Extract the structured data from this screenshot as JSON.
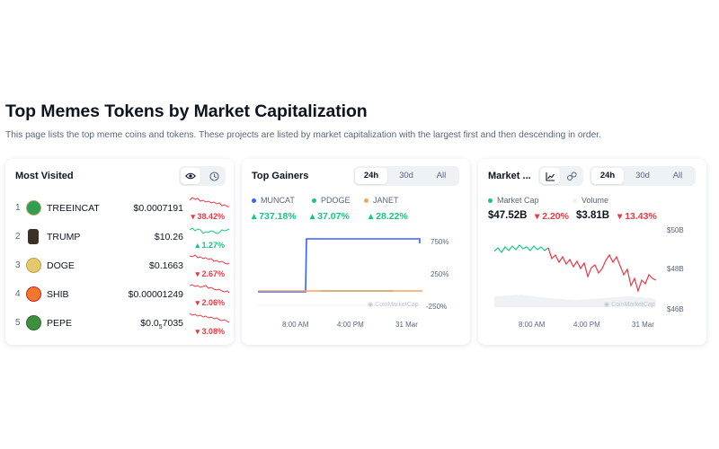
{
  "header": {
    "title": "Top Memes Tokens by Market Capitalization",
    "description": "This page lists the top meme coins and tokens. These projects are listed by market capitalization with the largest first and then descending in order."
  },
  "most_visited": {
    "title": "Most Visited",
    "icons": [
      "eye-icon",
      "clock-icon"
    ],
    "rows": [
      {
        "rank": "1",
        "symbol": "TREEINCAT",
        "price": "$0.0007191",
        "change": "38.42%",
        "direction": "down",
        "logo_color": "#2e9e4f"
      },
      {
        "rank": "2",
        "symbol": "TRUMP",
        "price": "$10.26",
        "change": "1.27%",
        "direction": "up",
        "logo_color": "#3a3226"
      },
      {
        "rank": "3",
        "symbol": "DOGE",
        "price": "$0.1663",
        "change": "2.67%",
        "direction": "down",
        "logo_color": "#d8b84a"
      },
      {
        "rank": "4",
        "symbol": "SHIB",
        "price": "$0.00001249",
        "change": "2.06%",
        "direction": "down",
        "logo_color": "#f0772c"
      },
      {
        "rank": "5",
        "symbol": "PEPE",
        "price_prefix": "$0.0",
        "price_sub": "5",
        "price_rest": "7035",
        "change": "3.08%",
        "direction": "down",
        "logo_color": "#3d8f3d"
      }
    ]
  },
  "top_gainers": {
    "title": "Top Gainers",
    "tabs": [
      "24h",
      "30d",
      "All"
    ],
    "active_tab": "24h",
    "legend": [
      {
        "name": "MUNCAT",
        "change": "737.18%",
        "color": "#3861fb"
      },
      {
        "name": "PDOGE",
        "change": "37.07%",
        "color": "#16c784"
      },
      {
        "name": "JANET",
        "change": "28.22%",
        "color": "#f5a25d"
      }
    ],
    "y_ticks": [
      "750%",
      "250%",
      "-250%"
    ],
    "x_ticks": [
      "8:00 AM",
      "4:00 PM",
      "31 Mar"
    ],
    "watermark": "CoinMarketCap"
  },
  "market_card": {
    "title": "Market ...",
    "tabs": [
      "24h",
      "30d",
      "All"
    ],
    "active_tab": "24h",
    "view_icons": [
      "line-chart-icon",
      "candlestick-icon"
    ],
    "legend": [
      {
        "name": "Market Cap",
        "color": "#16c784"
      },
      {
        "name": "Volume",
        "color": "#eff2f5"
      }
    ],
    "market_cap_value": "$47.52B",
    "market_cap_change": "2.20%",
    "volume_value": "$3.81B",
    "volume_change": "13.43%",
    "y_ticks": [
      "$50B",
      "$48B",
      "$46B"
    ],
    "x_ticks": [
      "8:00 AM",
      "4:00 PM",
      "31 Mar"
    ],
    "watermark": "CoinMarketCap"
  },
  "colors": {
    "up": "#16c784",
    "down": "#ea3943",
    "accent": "#3861fb"
  }
}
